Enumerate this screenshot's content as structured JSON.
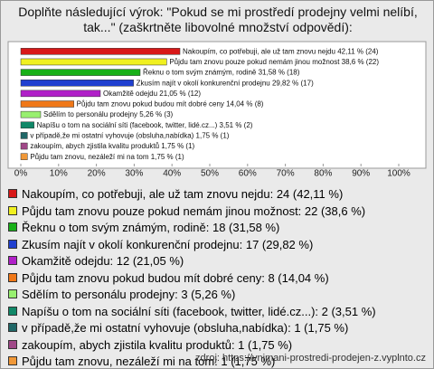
{
  "chart_data": {
    "type": "bar",
    "orientation": "horizontal",
    "title": "Doplňte následující výrok: \"Pokud se mi prostředí prodejny velmi nelíbí, tak...\" (zaškrtněte libovolné množství odpovědí):",
    "categories": [
      "Nakoupím, co potřebuji, ale už tam znovu nejdu: 24 (42,11 %)",
      "Půjdu tam znovu pouze pokud nemám jinou možnost: 22 (38,6 %)",
      "Řeknu o tom svým známým, rodině: 18 (31,58 %)",
      "Zkusím najít v okolí konkurenční prodejnu: 17 (29,82 %)",
      "Okamžitě odejdu: 12 (21,05 %)",
      "Půjdu tam znovu pokud budou mít dobré ceny: 8 (14,04 %)",
      "Sdělím to personálu prodejny: 3 (5,26 %)",
      "Napíšu o tom na sociální síti (facebook, twitter, lidé.cz...): 2 (3,51 %)",
      "v případě,že mi ostatní vyhovuje (obsluha,nabídka): 1 (1,75 %)",
      "zakoupím, abych zjistila kvalitu produktů: 1 (1,75 %)",
      "Půjdu tam znovu, nezáleží mi na tom: 1 (1,75 %)"
    ],
    "values": [
      42.11,
      38.6,
      31.58,
      29.82,
      21.05,
      14.04,
      5.26,
      3.51,
      1.75,
      1.75,
      1.75
    ],
    "value_labels": [
      "Nakoupím, co potřebuji, ale už tam znovu nejdu 42,11 % (24)",
      "Půjdu tam znovu pouze pokud nemám jinou možnost 38,6 % (22)",
      "Řeknu o tom svým známým, rodině 31,58 % (18)",
      "Zkusím najít v okolí konkurenční prodejnu 29,82 % (17)",
      "Okamžitě odejdu 21,05 % (12)",
      "Půjdu tam znovu pokud budou mít dobré ceny 14,04 % (8)",
      "Sdělím to personálu prodejny 5,26 % (3)",
      "Napíšu o tom na sociální síti (facebook, twitter, lidé.cz...) 3,51 % (2)",
      "v případě,že mi ostatní vyhovuje (obsluha,nabídka) 1,75 % (1)",
      "zakoupím, abych zjistila kvalitu produktů 1,75 % (1)",
      "Půjdu tam znovu, nezáleží mi na tom 1,75 % (1)"
    ],
    "colors": [
      "#d81818",
      "#f0f020",
      "#18b018",
      "#2040d0",
      "#b020c8",
      "#f07818",
      "#98f070",
      "#108868",
      "#206868",
      "#a04888",
      "#f09838"
    ],
    "xlim": [
      0,
      100
    ],
    "xticks": [
      {
        "value": 0,
        "label": "0%"
      },
      {
        "value": 10,
        "label": "10%"
      },
      {
        "value": 20,
        "label": "20%"
      },
      {
        "value": 30,
        "label": "30%"
      },
      {
        "value": 40,
        "label": "40%"
      },
      {
        "value": 50,
        "label": "50%"
      },
      {
        "value": 60,
        "label": "60%"
      },
      {
        "value": 70,
        "label": "70%"
      },
      {
        "value": 80,
        "label": "80%"
      },
      {
        "value": 90,
        "label": "90%"
      },
      {
        "value": 100,
        "label": "100%"
      }
    ],
    "source": "zdroj: https://vnimani-prostredi-prodejen-z.vyplnto.cz"
  }
}
